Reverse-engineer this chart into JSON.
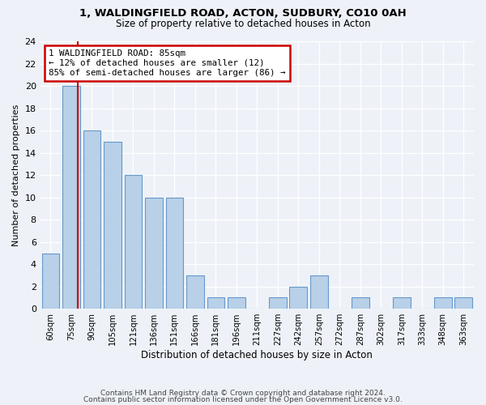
{
  "title1": "1, WALDINGFIELD ROAD, ACTON, SUDBURY, CO10 0AH",
  "title2": "Size of property relative to detached houses in Acton",
  "xlabel": "Distribution of detached houses by size in Acton",
  "ylabel": "Number of detached properties",
  "bin_labels": [
    "60sqm",
    "75sqm",
    "90sqm",
    "105sqm",
    "121sqm",
    "136sqm",
    "151sqm",
    "166sqm",
    "181sqm",
    "196sqm",
    "211sqm",
    "227sqm",
    "242sqm",
    "257sqm",
    "272sqm",
    "287sqm",
    "302sqm",
    "317sqm",
    "333sqm",
    "348sqm",
    "363sqm"
  ],
  "counts": [
    5,
    20,
    16,
    15,
    12,
    10,
    10,
    3,
    1,
    1,
    0,
    1,
    2,
    3,
    0,
    1,
    0,
    1,
    0,
    1,
    1
  ],
  "bar_color": "#b8d0e8",
  "bar_edge_color": "#6699cc",
  "reference_line_x": 1,
  "reference_line_color": "#cc0000",
  "annotation_title": "1 WALDINGFIELD ROAD: 85sqm",
  "annotation_line1": "← 12% of detached houses are smaller (12)",
  "annotation_line2": "85% of semi-detached houses are larger (86) →",
  "annotation_border_color": "#cc0000",
  "ylim": [
    0,
    24
  ],
  "yticks": [
    0,
    2,
    4,
    6,
    8,
    10,
    12,
    14,
    16,
    18,
    20,
    22,
    24
  ],
  "footer1": "Contains HM Land Registry data © Crown copyright and database right 2024.",
  "footer2": "Contains public sector information licensed under the Open Government Licence v3.0.",
  "background_color": "#eef2f8"
}
